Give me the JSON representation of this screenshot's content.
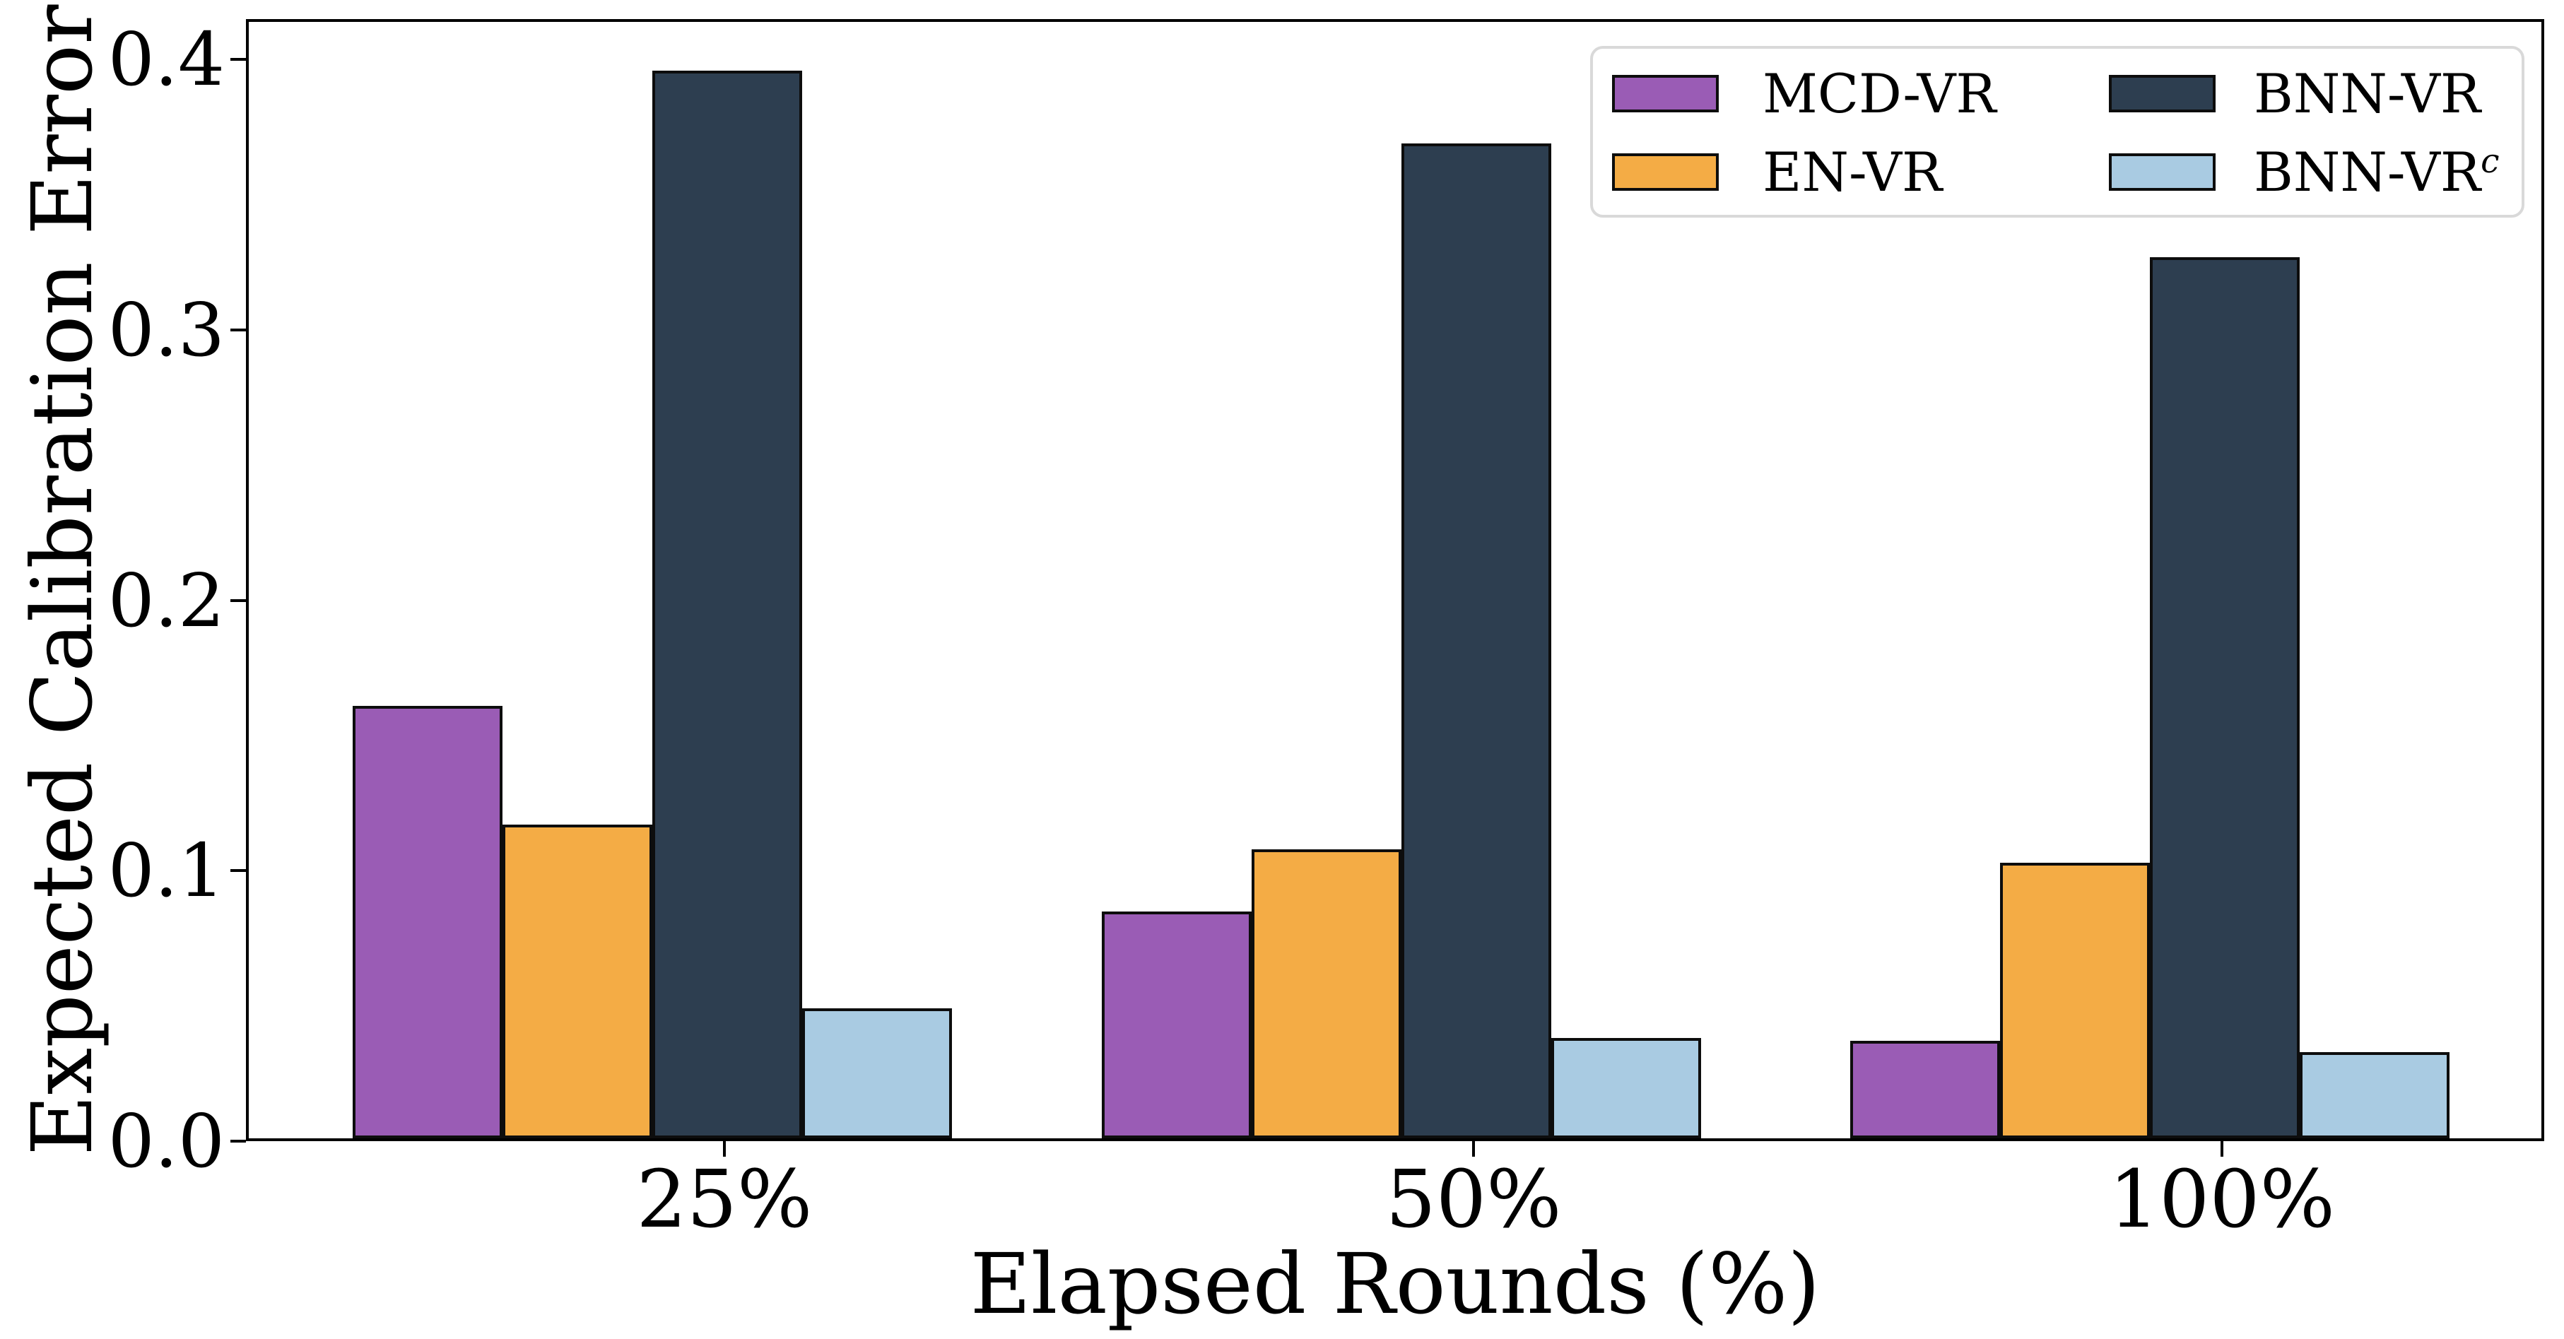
{
  "figure": {
    "background": "#ffffff"
  },
  "chart_data": {
    "type": "bar",
    "title": "",
    "xlabel": "Elapsed Rounds (%)",
    "ylabel": "Expected Calibration Error",
    "categories": [
      "25%",
      "50%",
      "100%"
    ],
    "series": [
      {
        "name": "MCD-VR",
        "color": "#9A5CB5",
        "values": [
          0.16,
          0.084,
          0.036
        ]
      },
      {
        "name": "EN-VR",
        "color": "#F4AC45",
        "values": [
          0.116,
          0.107,
          0.102
        ]
      },
      {
        "name": "BNN-VR",
        "color": "#2D3E50",
        "values": [
          0.395,
          0.368,
          0.326
        ]
      },
      {
        "name": "BNN-VR^c",
        "color": "#A9CBE2",
        "values": [
          0.048,
          0.037,
          0.032
        ]
      }
    ],
    "ylim": [
      0,
      0.415
    ],
    "ytick_values": [
      0,
      0.1,
      0.2,
      0.3,
      0.4
    ],
    "ytick_labels": [
      "0.0",
      "0.1",
      "0.2",
      "0.3",
      "0.4"
    ],
    "grid": false,
    "bar_edge_color": "#0d0d0d",
    "legend": {
      "position": "upper-right",
      "columns": 2,
      "entries": [
        {
          "label": "MCD-VR",
          "sup": "",
          "color": "#9A5CB5",
          "col": 0,
          "row": 0
        },
        {
          "label": "EN-VR",
          "sup": "",
          "color": "#F4AC45",
          "col": 0,
          "row": 1
        },
        {
          "label": "BNN-VR",
          "sup": "",
          "color": "#2D3E50",
          "col": 1,
          "row": 0
        },
        {
          "label": "BNN-VR",
          "sup": "c",
          "color": "#A9CBE2",
          "col": 1,
          "row": 1
        }
      ]
    }
  }
}
